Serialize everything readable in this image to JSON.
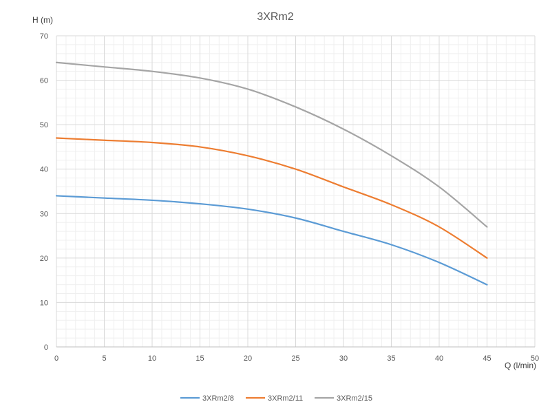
{
  "chart_data": {
    "type": "line",
    "title": "3XRm2",
    "xlabel": "Q (l/min)",
    "ylabel": "H (m)",
    "xlim": [
      0,
      50
    ],
    "ylim": [
      0,
      70
    ],
    "xticks": [
      0,
      5,
      10,
      15,
      20,
      25,
      30,
      35,
      40,
      45,
      50
    ],
    "yticks": [
      0,
      10,
      20,
      30,
      40,
      50,
      60,
      70
    ],
    "xtick_labels": [
      "0",
      "5",
      "10",
      "15",
      "20",
      "25",
      "30",
      "35",
      "40",
      "45",
      "50"
    ],
    "ytick_labels": [
      "0",
      "10",
      "20",
      "30",
      "40",
      "50",
      "60",
      "70"
    ],
    "grid": "major and minor",
    "legend": "bottom",
    "x": [
      0,
      5,
      10,
      15,
      20,
      25,
      30,
      35,
      40,
      45
    ],
    "series": [
      {
        "name": "3XRm2/8",
        "color": "#5B9BD5",
        "values": [
          34,
          33.5,
          33,
          32.2,
          31,
          29,
          26,
          23,
          19,
          14
        ]
      },
      {
        "name": "3XRm2/11",
        "color": "#ED7D31",
        "values": [
          47,
          46.5,
          46,
          45,
          43,
          40,
          36,
          32,
          27,
          20
        ]
      },
      {
        "name": "3XRm2/15",
        "color": "#A5A5A5",
        "values": [
          64,
          63,
          62,
          60.5,
          58,
          54,
          49,
          43,
          36,
          27
        ]
      }
    ]
  }
}
